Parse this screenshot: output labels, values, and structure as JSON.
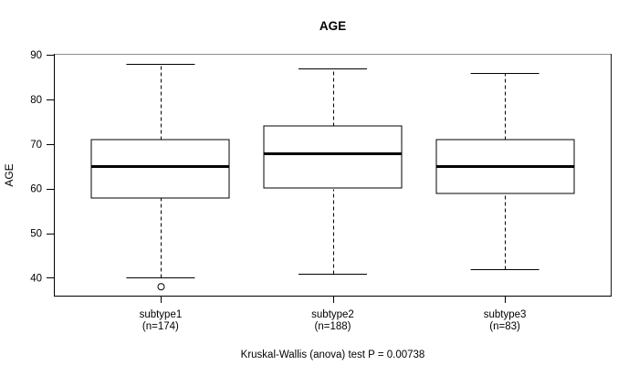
{
  "chart_data": {
    "type": "boxplot",
    "title": "AGE",
    "ylabel": "AGE",
    "xlabel": "",
    "yticks": [
      40,
      50,
      60,
      70,
      80,
      90
    ],
    "ylim": [
      35.8,
      90.2
    ],
    "grid": "off",
    "annotation": "Kruskal-Wallis (anova) test P = 0.00738",
    "groups": [
      {
        "label": "subtype1",
        "n": 174,
        "n_label": "(n=174)",
        "whisker_low": 40,
        "q1": 58,
        "median": 65,
        "q3": 71,
        "whisker_high": 88,
        "outliers": [
          38
        ]
      },
      {
        "label": "subtype2",
        "n": 188,
        "n_label": "(n=188)",
        "whisker_low": 41,
        "q1": 60,
        "median": 68,
        "q3": 74,
        "whisker_high": 87,
        "outliers": []
      },
      {
        "label": "subtype3",
        "n": 83,
        "n_label": "(n=83)",
        "whisker_low": 42,
        "q1": 59,
        "median": 65,
        "q3": 71,
        "whisker_high": 86,
        "outliers": []
      }
    ],
    "colors": {
      "line": "#000000",
      "background": "#ffffff",
      "frame_top_line": "#8f8f8f",
      "box_fill": "#ffffff"
    }
  }
}
